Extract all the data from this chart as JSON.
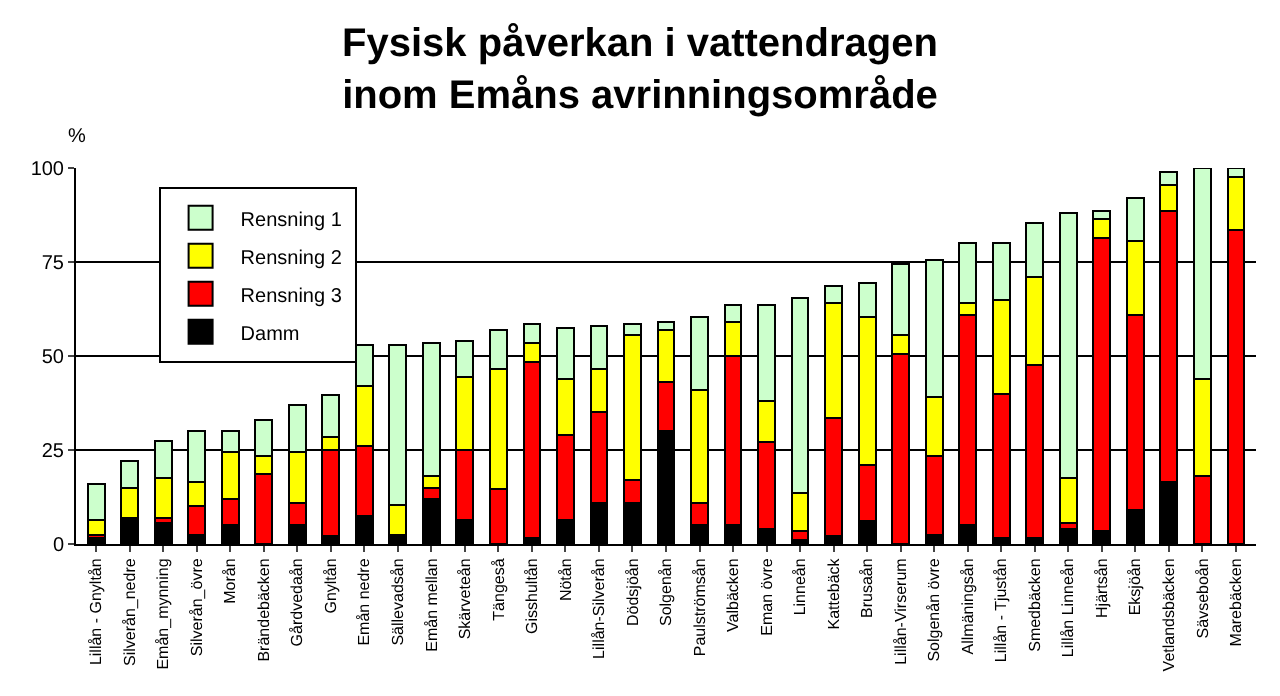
{
  "chart_data": {
    "type": "bar",
    "title": "Fysisk påverkan i vattendragen\ninom Emåns avrinningsområde",
    "ylabel": "%",
    "stacked": true,
    "categories": [
      "Lillån - Gnyltån",
      "Silverån_nedre",
      "Emån_mynning",
      "Silverån_övre",
      "Morån",
      "Brändebäcken",
      "Gårdvedaån",
      "Gnyltån",
      "Emån nedre",
      "Sällevadsån",
      "Emån mellan",
      "Skärveteån",
      "Tängeså",
      "Gisshultån",
      "Nötån",
      "Lillån-Silverån",
      "Dödsjöån",
      "Solgenån",
      "Paulströmsån",
      "Valbäcken",
      "Eman övre",
      "Linneån",
      "Kattebäck",
      "Brusaån",
      "Lillån-Virserum",
      "Solgenån övre",
      "Allmäningsån",
      "Lillån - Tjustån",
      "Smedbäcken",
      "Lillån Linneån",
      "Hjärtsån",
      "Eksjöån",
      "Vetlandsbäcken",
      "Sävseboån",
      "Marebäcken"
    ],
    "series": [
      {
        "name": "Damm",
        "color": "#000000",
        "values": [
          1.5,
          7,
          5.5,
          2.5,
          5,
          0,
          5,
          2,
          7.5,
          2.5,
          12,
          6.5,
          0,
          1.5,
          6.5,
          11,
          11,
          30,
          5,
          5,
          4,
          1,
          2,
          6,
          0,
          2.5,
          5,
          1.5,
          1.5,
          4,
          3.5,
          9,
          16.5,
          0,
          0
        ]
      },
      {
        "name": "Rensning 3",
        "color": "#ff0000",
        "values": [
          1,
          0,
          1.5,
          7.5,
          7,
          18.5,
          6,
          23,
          18.5,
          0,
          3,
          18.5,
          14.5,
          47,
          22.5,
          24,
          6,
          13,
          6,
          45,
          23,
          2.5,
          31.5,
          15,
          50.5,
          21,
          56,
          38.5,
          46,
          1.5,
          78,
          52,
          72,
          18,
          83.5
        ]
      },
      {
        "name": "Rensning 2",
        "color": "#ffff00",
        "values": [
          4,
          8,
          10.5,
          6.5,
          12.5,
          5,
          13.5,
          3.5,
          16,
          8,
          3,
          19.5,
          32,
          5,
          15,
          11.5,
          38.5,
          14,
          30,
          9,
          11,
          10,
          30.5,
          39.5,
          5,
          15.5,
          3,
          25,
          23.5,
          12,
          5,
          19.5,
          7,
          26,
          14
        ]
      },
      {
        "name": "Rensning 1",
        "color": "#ccffcc",
        "values": [
          9.5,
          7,
          10,
          13.5,
          5.5,
          9.5,
          12.5,
          11,
          11,
          42.5,
          35.5,
          9.5,
          10.5,
          5,
          13.5,
          11.5,
          3,
          2,
          19.5,
          4.5,
          25.5,
          52,
          4.5,
          9,
          19,
          36.5,
          16,
          15,
          14.5,
          70.5,
          2,
          11.5,
          3.5,
          56,
          2.5
        ]
      }
    ],
    "ylim": [
      0,
      100
    ],
    "yticks": [
      0,
      25,
      50,
      75,
      100
    ],
    "grid": "y",
    "legend": "top left"
  }
}
